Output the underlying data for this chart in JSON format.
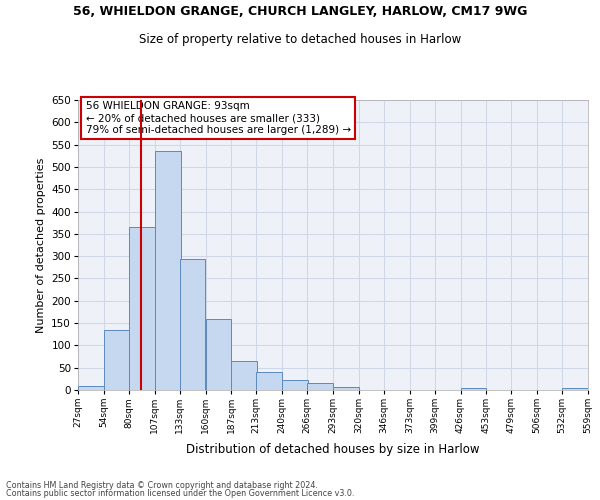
{
  "title": "56, WHIELDON GRANGE, CHURCH LANGLEY, HARLOW, CM17 9WG",
  "subtitle": "Size of property relative to detached houses in Harlow",
  "xlabel": "Distribution of detached houses by size in Harlow",
  "ylabel": "Number of detached properties",
  "bin_edges": [
    27,
    54,
    80,
    107,
    133,
    160,
    187,
    213,
    240,
    266,
    293,
    320,
    346,
    373,
    399,
    426,
    453,
    479,
    506,
    532,
    559
  ],
  "bin_labels": [
    "27sqm",
    "54sqm",
    "80sqm",
    "107sqm",
    "133sqm",
    "160sqm",
    "187sqm",
    "213sqm",
    "240sqm",
    "266sqm",
    "293sqm",
    "320sqm",
    "346sqm",
    "373sqm",
    "399sqm",
    "426sqm",
    "453sqm",
    "479sqm",
    "506sqm",
    "532sqm",
    "559sqm"
  ],
  "bar_heights": [
    10,
    135,
    365,
    535,
    293,
    160,
    65,
    40,
    22,
    15,
    6,
    0,
    0,
    0,
    0,
    5,
    0,
    0,
    0,
    5
  ],
  "bar_color": "#c5d8f0",
  "bar_edge_color": "#5b8abf",
  "grid_color": "#d0d8e8",
  "background_color": "#eef2f8",
  "vline_x": 93,
  "vline_color": "#cc0000",
  "annotation_line1": "56 WHIELDON GRANGE: 93sqm",
  "annotation_line2": "← 20% of detached houses are smaller (333)",
  "annotation_line3": "79% of semi-detached houses are larger (1,289) →",
  "annotation_box_color": "#cc0000",
  "ylim": [
    0,
    650
  ],
  "yticks": [
    0,
    50,
    100,
    150,
    200,
    250,
    300,
    350,
    400,
    450,
    500,
    550,
    600,
    650
  ],
  "footer_line1": "Contains HM Land Registry data © Crown copyright and database right 2024.",
  "footer_line2": "Contains public sector information licensed under the Open Government Licence v3.0."
}
